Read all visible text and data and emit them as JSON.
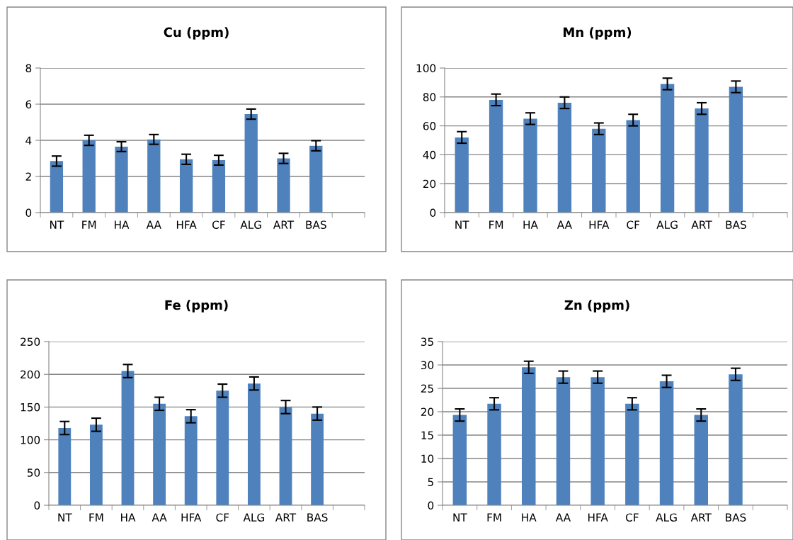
{
  "chart_data": [
    {
      "type": "bar",
      "title": "Cu (ppm)",
      "categories": [
        "NT",
        "FM",
        "HA",
        "AA",
        "HFA",
        "CF",
        "ALG",
        "ART",
        "BAS",
        null
      ],
      "color": "#4f81bd",
      "values": [
        2.85,
        4.0,
        3.65,
        4.05,
        2.95,
        2.9,
        5.45,
        3.0,
        3.7,
        null
      ],
      "errors": [
        0.28,
        0.28,
        0.27,
        0.27,
        0.28,
        0.27,
        0.28,
        0.28,
        0.28,
        null
      ],
      "ylim": [
        0,
        8
      ],
      "yticks": [
        0,
        2,
        4,
        6,
        8
      ],
      "grid": "y",
      "legend": false
    },
    {
      "type": "bar",
      "title": "Mn (ppm)",
      "categories": [
        "NT",
        "FM",
        "HA",
        "AA",
        "HFA",
        "CF",
        "ALG",
        "ART",
        "BAS",
        null
      ],
      "color": "#4f81bd",
      "values": [
        52,
        78,
        65,
        76,
        58,
        64,
        89,
        72,
        87,
        null
      ],
      "errors": [
        4,
        4,
        4,
        4,
        4,
        4,
        4,
        4,
        4,
        null
      ],
      "ylim": [
        0,
        100
      ],
      "yticks": [
        0,
        20,
        40,
        60,
        80,
        100
      ],
      "grid": "y",
      "legend": false
    },
    {
      "type": "bar",
      "title": "Fe (ppm)",
      "categories": [
        "NT",
        "FM",
        "HA",
        "AA",
        "HFA",
        "CF",
        "ALG",
        "ART",
        "BAS",
        null
      ],
      "color": "#4f81bd",
      "values": [
        118,
        123,
        205,
        155,
        136,
        175,
        186,
        150,
        140,
        null
      ],
      "errors": [
        10,
        10,
        10,
        10,
        10,
        10,
        10,
        10,
        10,
        null
      ],
      "ylim": [
        0,
        250
      ],
      "yticks": [
        0,
        50,
        100,
        150,
        200,
        250
      ],
      "grid": "y",
      "legend": false
    },
    {
      "type": "bar",
      "title": "Zn (ppm)",
      "categories": [
        "NT",
        "FM",
        "HA",
        "AA",
        "HFA",
        "CF",
        "ALG",
        "ART",
        "BAS",
        null
      ],
      "color": "#4f81bd",
      "values": [
        19.3,
        21.7,
        29.5,
        27.4,
        27.4,
        21.7,
        26.5,
        19.3,
        28.0,
        null
      ],
      "errors": [
        1.3,
        1.3,
        1.3,
        1.3,
        1.3,
        1.3,
        1.3,
        1.3,
        1.3,
        null
      ],
      "ylim": [
        0,
        35
      ],
      "yticks": [
        0,
        5,
        10,
        15,
        20,
        25,
        30,
        35
      ],
      "grid": "y",
      "legend": false
    }
  ]
}
